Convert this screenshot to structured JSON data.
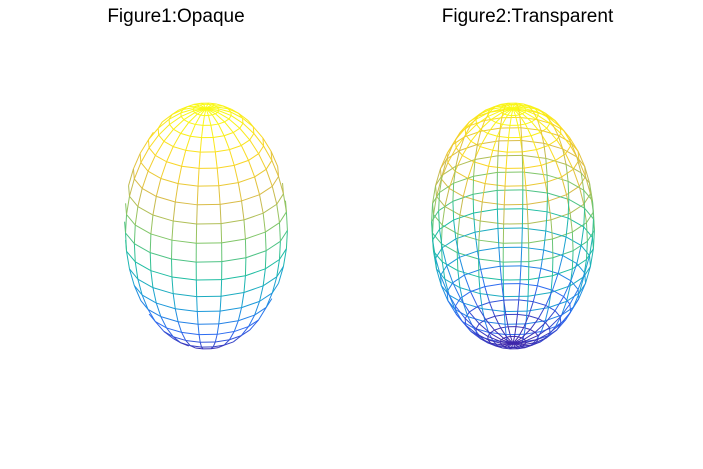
{
  "figures": [
    {
      "title": "Figure1:Opaque",
      "render_mode": "opaque"
    },
    {
      "title": "Figure2:Transparent",
      "render_mode": "transparent"
    }
  ],
  "colormap": [
    "#3e26a8",
    "#2e6bf2",
    "#1a9ed8",
    "#1ebf9f",
    "#7dc76a",
    "#d6b94a",
    "#fad625",
    "#f9fb15"
  ]
}
